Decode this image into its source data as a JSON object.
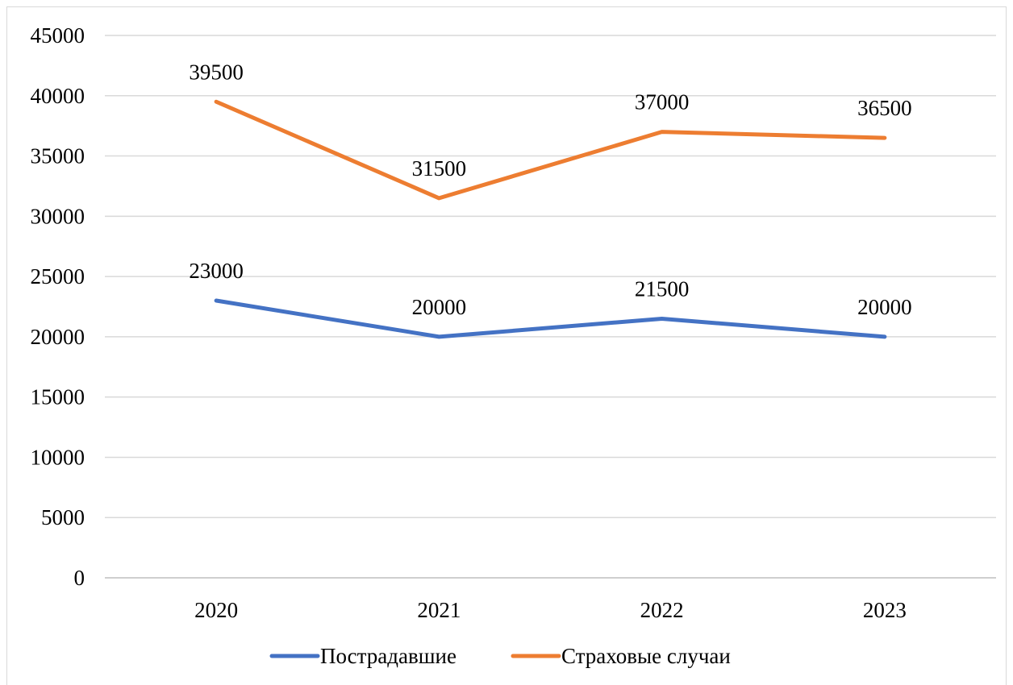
{
  "chart_data": {
    "type": "line",
    "title": "",
    "xlabel": "",
    "ylabel": "",
    "categories": [
      "2020",
      "2021",
      "2022",
      "2023"
    ],
    "ylim": [
      0,
      45000
    ],
    "yticks": [
      0,
      5000,
      10000,
      15000,
      20000,
      25000,
      30000,
      35000,
      40000,
      45000
    ],
    "grid": true,
    "legend_position": "bottom",
    "series": [
      {
        "name": "Пострадавшие",
        "color": "#4472C4",
        "values": [
          23000,
          20000,
          21500,
          20000
        ],
        "labels": [
          "23000",
          "20000",
          "21500",
          "20000"
        ]
      },
      {
        "name": "Страховые случаи",
        "color": "#ED7D31",
        "values": [
          39500,
          31500,
          37000,
          36500
        ],
        "labels": [
          "39500",
          "31500",
          "37000",
          "36500"
        ]
      }
    ]
  }
}
